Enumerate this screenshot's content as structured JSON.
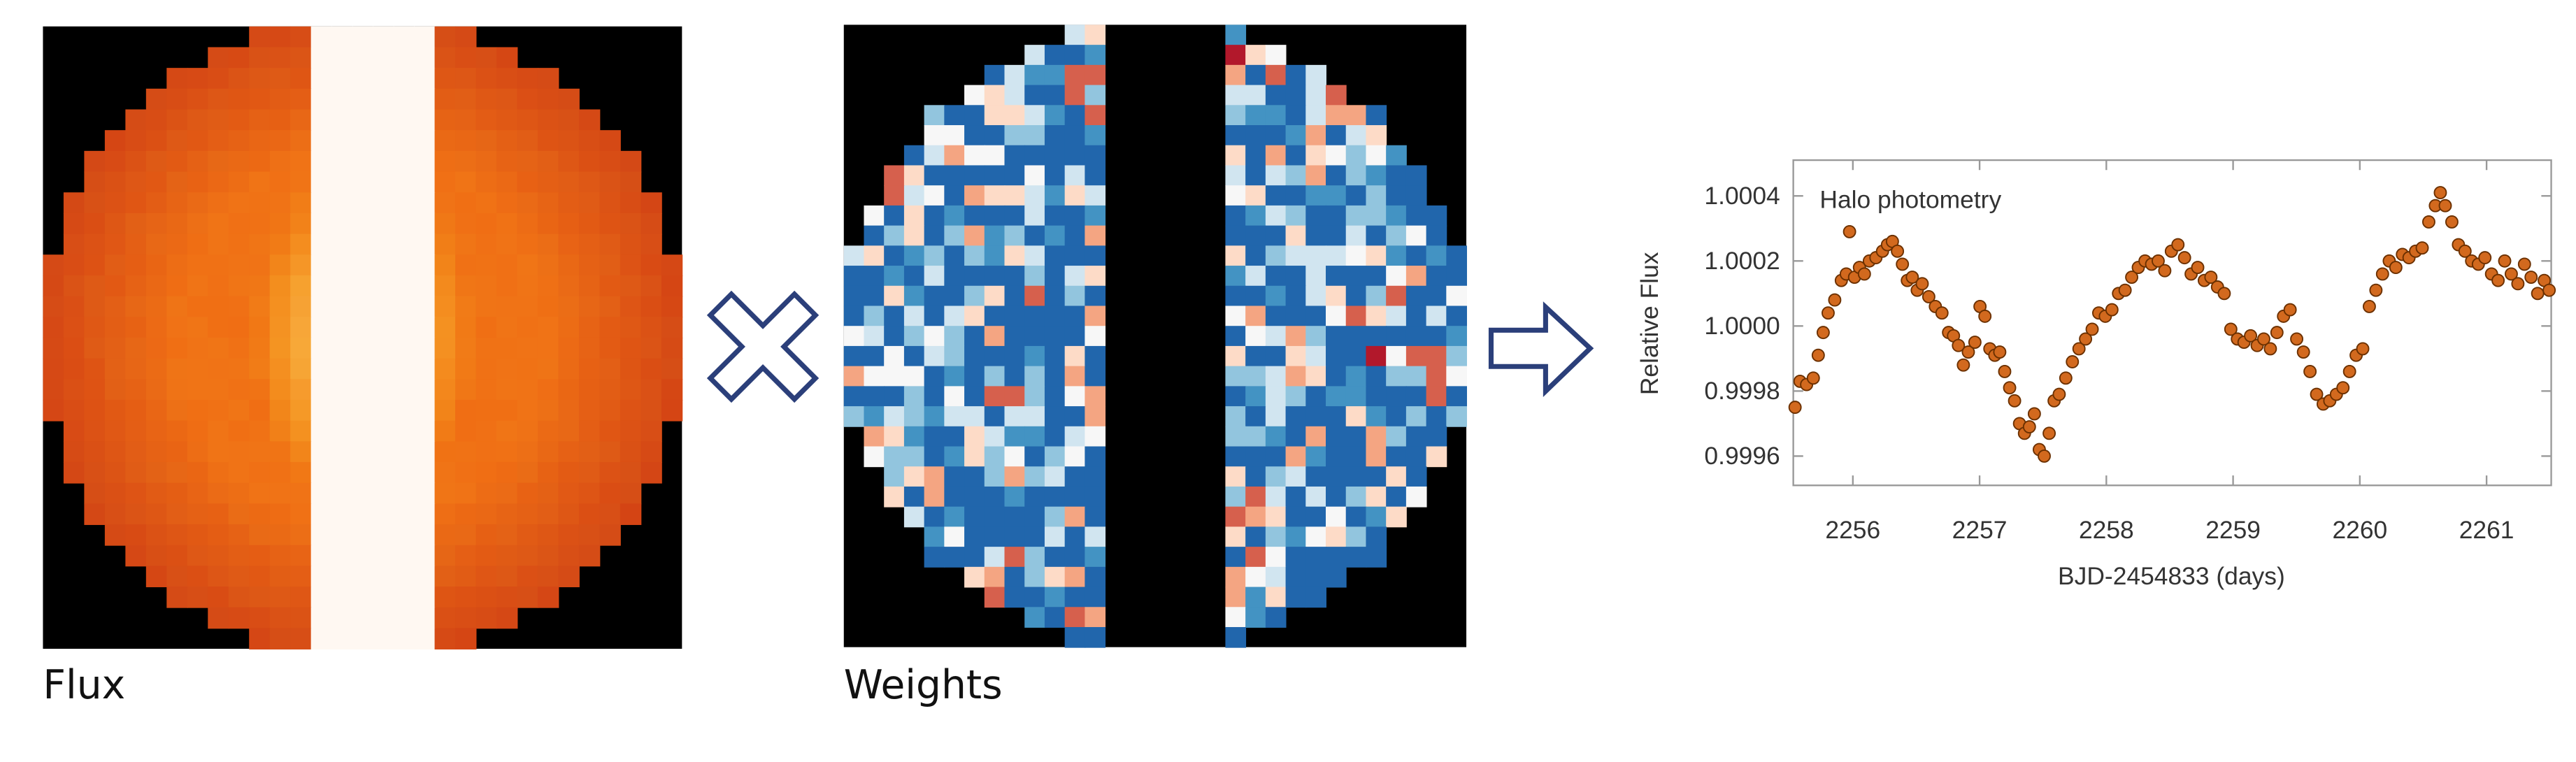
{
  "images": [
    {
      "label": "Flux"
    },
    {
      "label": "Weights"
    }
  ],
  "chart_data": {
    "type": "scatter",
    "annotation": "Halo photometry",
    "xlabel": "BJD-2454833 (days)",
    "ylabel": "Relative Flux",
    "color": "#d2691e",
    "x": [
      2255.544,
      2255.583,
      2255.635,
      2255.688,
      2255.727,
      2255.766,
      2255.805,
      2255.857,
      2255.909,
      2255.948,
      2255.974,
      2256.013,
      2256.052,
      2256.091,
      2256.13,
      2256.182,
      2256.234,
      2256.273,
      2256.312,
      2256.352,
      2256.391,
      2256.43,
      2256.469,
      2256.508,
      2256.547,
      2256.599,
      2256.651,
      2256.703,
      2256.755,
      2256.794,
      2256.833,
      2256.872,
      2256.911,
      2256.963,
      2257.003,
      2257.042,
      2257.081,
      2257.12,
      2257.159,
      2257.198,
      2257.237,
      2257.276,
      2257.315,
      2257.354,
      2257.393,
      2257.432,
      2257.471,
      2257.51,
      2257.549,
      2257.588,
      2257.628,
      2257.68,
      2257.732,
      2257.784,
      2257.836,
      2257.888,
      2257.94,
      2257.992,
      2258.044,
      2258.096,
      2258.148,
      2258.2,
      2258.252,
      2258.305,
      2258.357,
      2258.409,
      2258.461,
      2258.513,
      2258.565,
      2258.617,
      2258.669,
      2258.721,
      2258.773,
      2258.825,
      2258.877,
      2258.93,
      2258.982,
      2259.034,
      2259.086,
      2259.138,
      2259.19,
      2259.242,
      2259.294,
      2259.346,
      2259.398,
      2259.45,
      2259.502,
      2259.555,
      2259.607,
      2259.659,
      2259.711,
      2259.763,
      2259.815,
      2259.867,
      2259.919,
      2259.971,
      2260.023,
      2260.075,
      2260.127,
      2260.179,
      2260.232,
      2260.284,
      2260.336,
      2260.388,
      2260.44,
      2260.492,
      2260.544,
      2260.596,
      2260.635,
      2260.674,
      2260.726,
      2260.778,
      2260.83,
      2260.882,
      2260.935,
      2260.987,
      2261.039,
      2261.091,
      2261.143,
      2261.195,
      2261.247,
      2261.299,
      2261.351,
      2261.403,
      2261.455,
      2261.494
    ],
    "values": [
      0.99975,
      0.99983,
      0.99982,
      0.99984,
      0.99991,
      0.99998,
      1.00004,
      1.00008,
      1.00014,
      1.00016,
      1.00029,
      1.00015,
      1.00018,
      1.00016,
      1.0002,
      1.00021,
      1.00023,
      1.00025,
      1.00026,
      1.00023,
      1.00019,
      1.00014,
      1.00015,
      1.00011,
      1.00013,
      1.00009,
      1.00006,
      1.00004,
      0.99998,
      0.99997,
      0.99994,
      0.99988,
      0.99992,
      0.99995,
      1.00006,
      1.00003,
      0.99993,
      0.99991,
      0.99992,
      0.99986,
      0.99981,
      0.99977,
      0.9997,
      0.99967,
      0.99969,
      0.99973,
      0.99962,
      0.9996,
      0.99967,
      0.99977,
      0.99979,
      0.99984,
      0.99989,
      0.99993,
      0.99996,
      0.99999,
      1.00004,
      1.00003,
      1.00005,
      1.0001,
      1.00011,
      1.00015,
      1.00018,
      1.0002,
      1.00019,
      1.0002,
      1.00017,
      1.00023,
      1.00025,
      1.00021,
      1.00016,
      1.00018,
      1.00014,
      1.00015,
      1.00012,
      1.0001,
      0.99999,
      0.99996,
      0.99995,
      0.99997,
      0.99994,
      0.99996,
      0.99993,
      0.99998,
      1.00003,
      1.00005,
      0.99996,
      0.99992,
      0.99986,
      0.99979,
      0.99976,
      0.99977,
      0.99979,
      0.99981,
      0.99986,
      0.99991,
      0.99993,
      1.00006,
      1.00011,
      1.00016,
      1.0002,
      1.00018,
      1.00022,
      1.00021,
      1.00023,
      1.00024,
      1.00032,
      1.00037,
      1.00041,
      1.00037,
      1.00032,
      1.00025,
      1.00023,
      1.0002,
      1.00019,
      1.00021,
      1.00016,
      1.00014,
      1.0002,
      1.00016,
      1.00013,
      1.00019,
      1.00015,
      1.0001,
      1.00014,
      1.00011
    ],
    "xlim": [
      2255.53,
      2261.51
    ],
    "ylim": [
      0.99951,
      1.00051
    ],
    "xticks": [
      2256,
      2257,
      2258,
      2259,
      2260,
      2261
    ],
    "yticks": [
      0.9996,
      0.9998,
      {
        "value": 1,
        "label": "1.0000"
      },
      1.0002,
      1.0004
    ]
  }
}
